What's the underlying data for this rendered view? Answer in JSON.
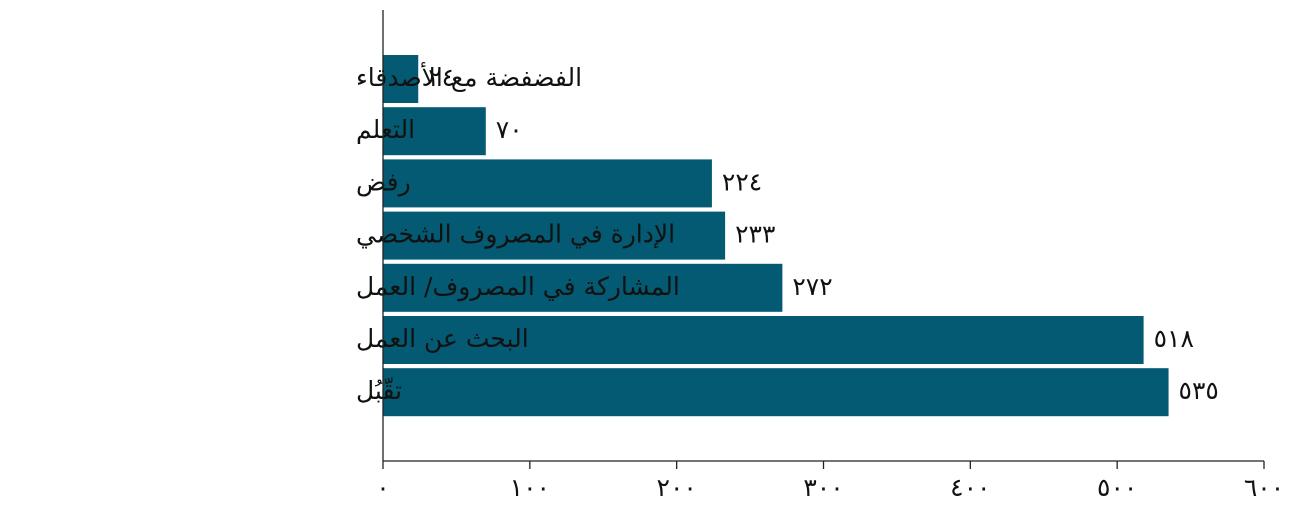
{
  "chart_data": {
    "type": "bar",
    "orientation": "horizontal",
    "title": "",
    "xlabel": "",
    "ylabel": "",
    "categories": [
      "الفضفضة مع الأصدقاء",
      "التعلم",
      "رفض",
      "الإدارة في المصروف الشخصي",
      "المشاركة في المصروف/ العمل",
      "البحث عن العمل",
      "تقّبُل"
    ],
    "values": [
      24,
      70,
      224,
      233,
      272,
      518,
      535
    ],
    "value_labels": [
      "٢٤",
      "٧٠",
      "٢٢٤",
      "٢٣٣",
      "٢٧٢",
      "٥١٨",
      "٥٣٥"
    ],
    "xlim": [
      0,
      600
    ],
    "x_ticks": [
      0,
      100,
      200,
      300,
      400,
      500,
      600
    ],
    "x_tick_labels": [
      "٠",
      "١٠٠",
      "٢٠٠",
      "٣٠٠",
      "٤٠٠",
      "٥٠٠",
      "٦٠٠"
    ],
    "grid": false,
    "legend": "none",
    "colors": {
      "bar": "#035a72",
      "axis": "#222222",
      "text": "#111111"
    }
  }
}
